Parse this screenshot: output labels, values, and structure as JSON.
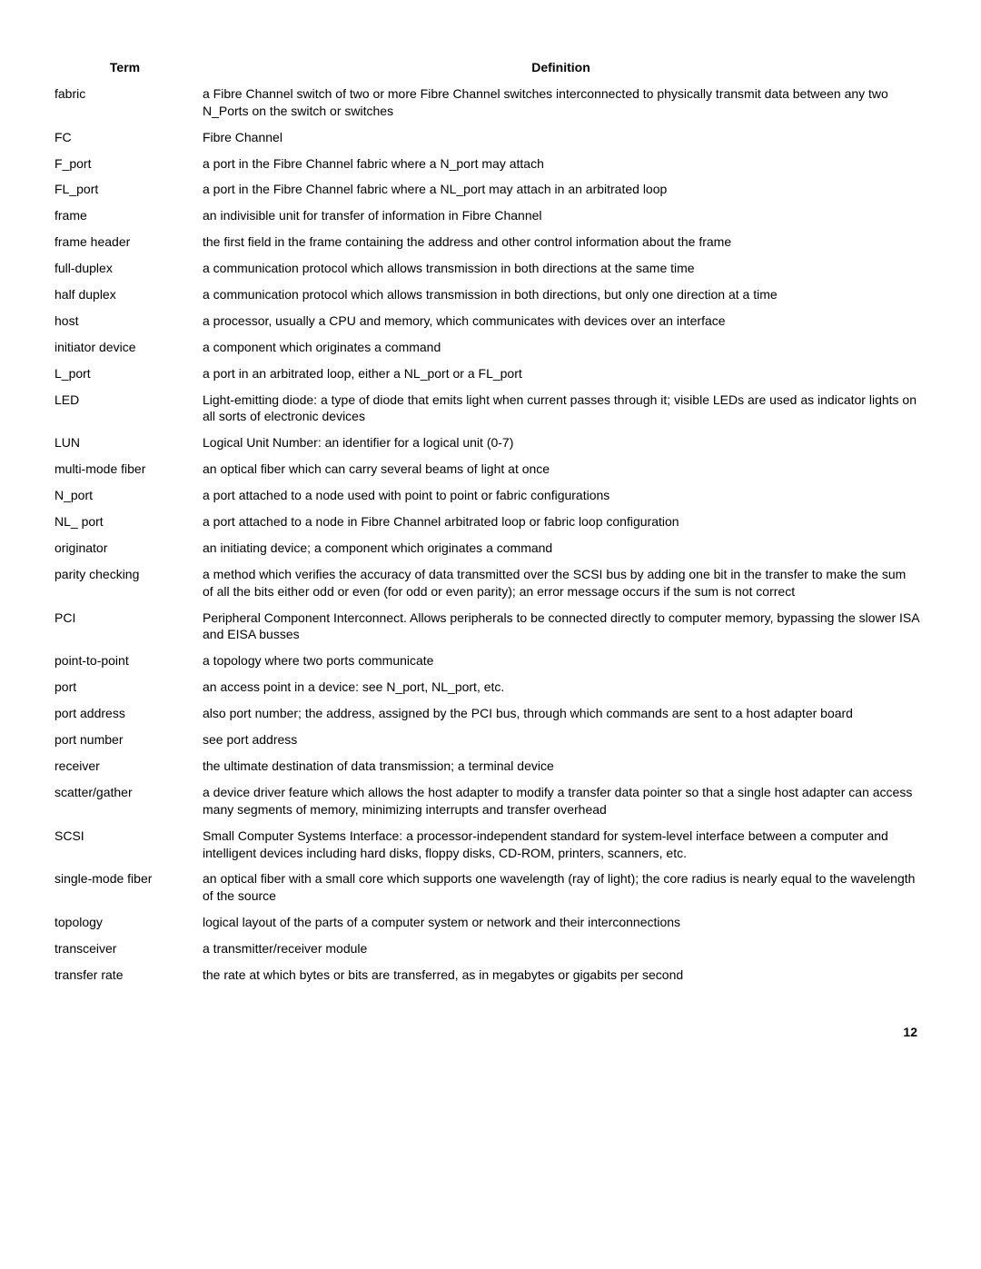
{
  "headers": {
    "term": "Term",
    "definition": "Definition"
  },
  "rows": [
    {
      "term": "fabric",
      "definition": "a Fibre Channel switch of two or more Fibre Channel switches interconnected to physically transmit data between any two N_Ports on the switch or switches"
    },
    {
      "term": "FC",
      "definition": "Fibre Channel"
    },
    {
      "term": "F_port",
      "definition": "a port in the Fibre Channel fabric where a N_port may attach"
    },
    {
      "term": "FL_port",
      "definition": "a port in the Fibre Channel fabric where a NL_port may attach in an arbitrated loop"
    },
    {
      "term": "frame",
      "definition": "an indivisible unit for transfer of information in Fibre Channel"
    },
    {
      "term": "frame header",
      "definition": "the first field in the frame containing the address and other control information about the frame"
    },
    {
      "term": "full-duplex",
      "definition": "a communication protocol which allows transmission in both directions at the same time"
    },
    {
      "term": "half duplex",
      "definition": "a communication protocol which allows transmission in both directions, but only one direction at a time"
    },
    {
      "term": "host",
      "definition": "a processor, usually a CPU and memory, which communicates with devices over an interface"
    },
    {
      "term": "initiator device",
      "definition": "a component which originates a command"
    },
    {
      "term": "L_port",
      "definition": "a port in an arbitrated loop, either a NL_port or a FL_port"
    },
    {
      "term": "LED",
      "definition": "Light-emitting diode: a type of diode that emits light when current passes through it; visible LEDs are used as indicator lights on all sorts of electronic devices"
    },
    {
      "term": "LUN",
      "definition": "Logical Unit Number: an identifier for a logical unit (0-7)"
    },
    {
      "term": "multi-mode fiber",
      "definition": "an optical fiber which can carry several beams of light at once"
    },
    {
      "term": "N_port",
      "definition": "a port attached to a node used with point to point or fabric configurations"
    },
    {
      "term": "NL_ port",
      "definition": "a port attached to a node in Fibre Channel arbitrated loop or fabric loop configuration"
    },
    {
      "term": "originator",
      "definition": "an initiating device; a component which originates a command"
    },
    {
      "term": "parity checking",
      "definition": "a method which verifies the accuracy of data transmitted over the SCSI bus by adding one bit in the transfer to make the sum of all the bits either odd or even (for odd or even parity); an error message occurs if the sum is not correct"
    },
    {
      "term": "PCI",
      "definition": "Peripheral Component Interconnect. Allows peripherals to be connected directly to computer memory, bypassing the slower ISA and EISA busses"
    },
    {
      "term": "point-to-point",
      "definition": "a topology where two ports communicate"
    },
    {
      "term": "port",
      "definition": "an access point in a device: see N_port, NL_port, etc."
    },
    {
      "term": "port address",
      "definition": "also port number; the address, assigned by the PCI bus, through which commands are sent to a host adapter board"
    },
    {
      "term": "port number",
      "definition": "see port address"
    },
    {
      "term": "receiver",
      "definition": "the ultimate destination of data transmission; a terminal device"
    },
    {
      "term": "scatter/gather",
      "definition": "a device driver feature which allows the host adapter to modify a transfer data pointer so that a single host adapter can access many segments of memory, minimizing interrupts and transfer overhead"
    },
    {
      "term": "SCSI",
      "definition": "Small Computer Systems Interface: a processor-independent standard for system-level interface between a computer and intelligent devices including hard disks, floppy disks, CD-ROM, printers, scanners, etc."
    },
    {
      "term": "single-mode fiber",
      "definition": "an optical fiber with a small core which supports one wavelength (ray of light); the core radius is nearly equal to the wavelength of the source"
    },
    {
      "term": "topology",
      "definition": "logical layout of the parts of a computer system or network and their interconnections"
    },
    {
      "term": "transceiver",
      "definition": "a transmitter/receiver module"
    },
    {
      "term": "transfer rate",
      "definition": "the rate at which bytes or bits are transferred, as in megabytes or gigabits per second"
    }
  ],
  "page_number": "12"
}
